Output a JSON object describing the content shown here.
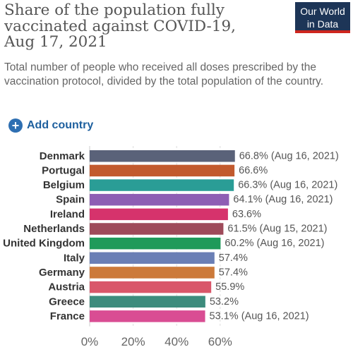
{
  "header": {
    "title_lines": [
      "Share of the population fully",
      "vaccinated against COVID-19,",
      "Aug 17, 2021"
    ],
    "subtitle": "Total number of people who received all doses prescribed by the vaccination protocol, divided by the total population of the country."
  },
  "logo": {
    "line1": "Our World",
    "line2": "in Data",
    "bg_color": "#1d3557",
    "accent_color": "#ce261e"
  },
  "controls": {
    "add_country_label": "Add country",
    "add_icon": "plus-circle-icon"
  },
  "chart_data": {
    "type": "bar",
    "orientation": "horizontal",
    "categories": [
      "Denmark",
      "Portugal",
      "Belgium",
      "Spain",
      "Ireland",
      "Netherlands",
      "United Kingdom",
      "Italy",
      "Germany",
      "Austria",
      "Greece",
      "France"
    ],
    "values": [
      66.8,
      66.6,
      66.3,
      64.1,
      63.6,
      61.5,
      60.2,
      57.4,
      57.4,
      55.9,
      53.2,
      53.1
    ],
    "value_labels": [
      "66.8% (Aug 16, 2021)",
      "66.6%",
      "66.3% (Aug 16, 2021)",
      "64.1% (Aug 16, 2021)",
      "63.6%",
      "61.5% (Aug 15, 2021)",
      "60.2% (Aug 16, 2021)",
      "57.4%",
      "57.4%",
      "55.9%",
      "53.2%",
      "53.1% (Aug 16, 2021)"
    ],
    "colors": [
      "#5a6279",
      "#c25a2e",
      "#2a9d96",
      "#8e5eb4",
      "#d6336c",
      "#9e4a5a",
      "#1f9a5a",
      "#6a7fb5",
      "#cc7a3a",
      "#d9576a",
      "#3d8c7d",
      "#d94d93"
    ],
    "xlim": [
      0,
      70
    ],
    "x_ticks": [
      0,
      20,
      40,
      60
    ],
    "x_tick_labels": [
      "0%",
      "20%",
      "40%",
      "60%"
    ],
    "grid": "vertical-dashed"
  }
}
